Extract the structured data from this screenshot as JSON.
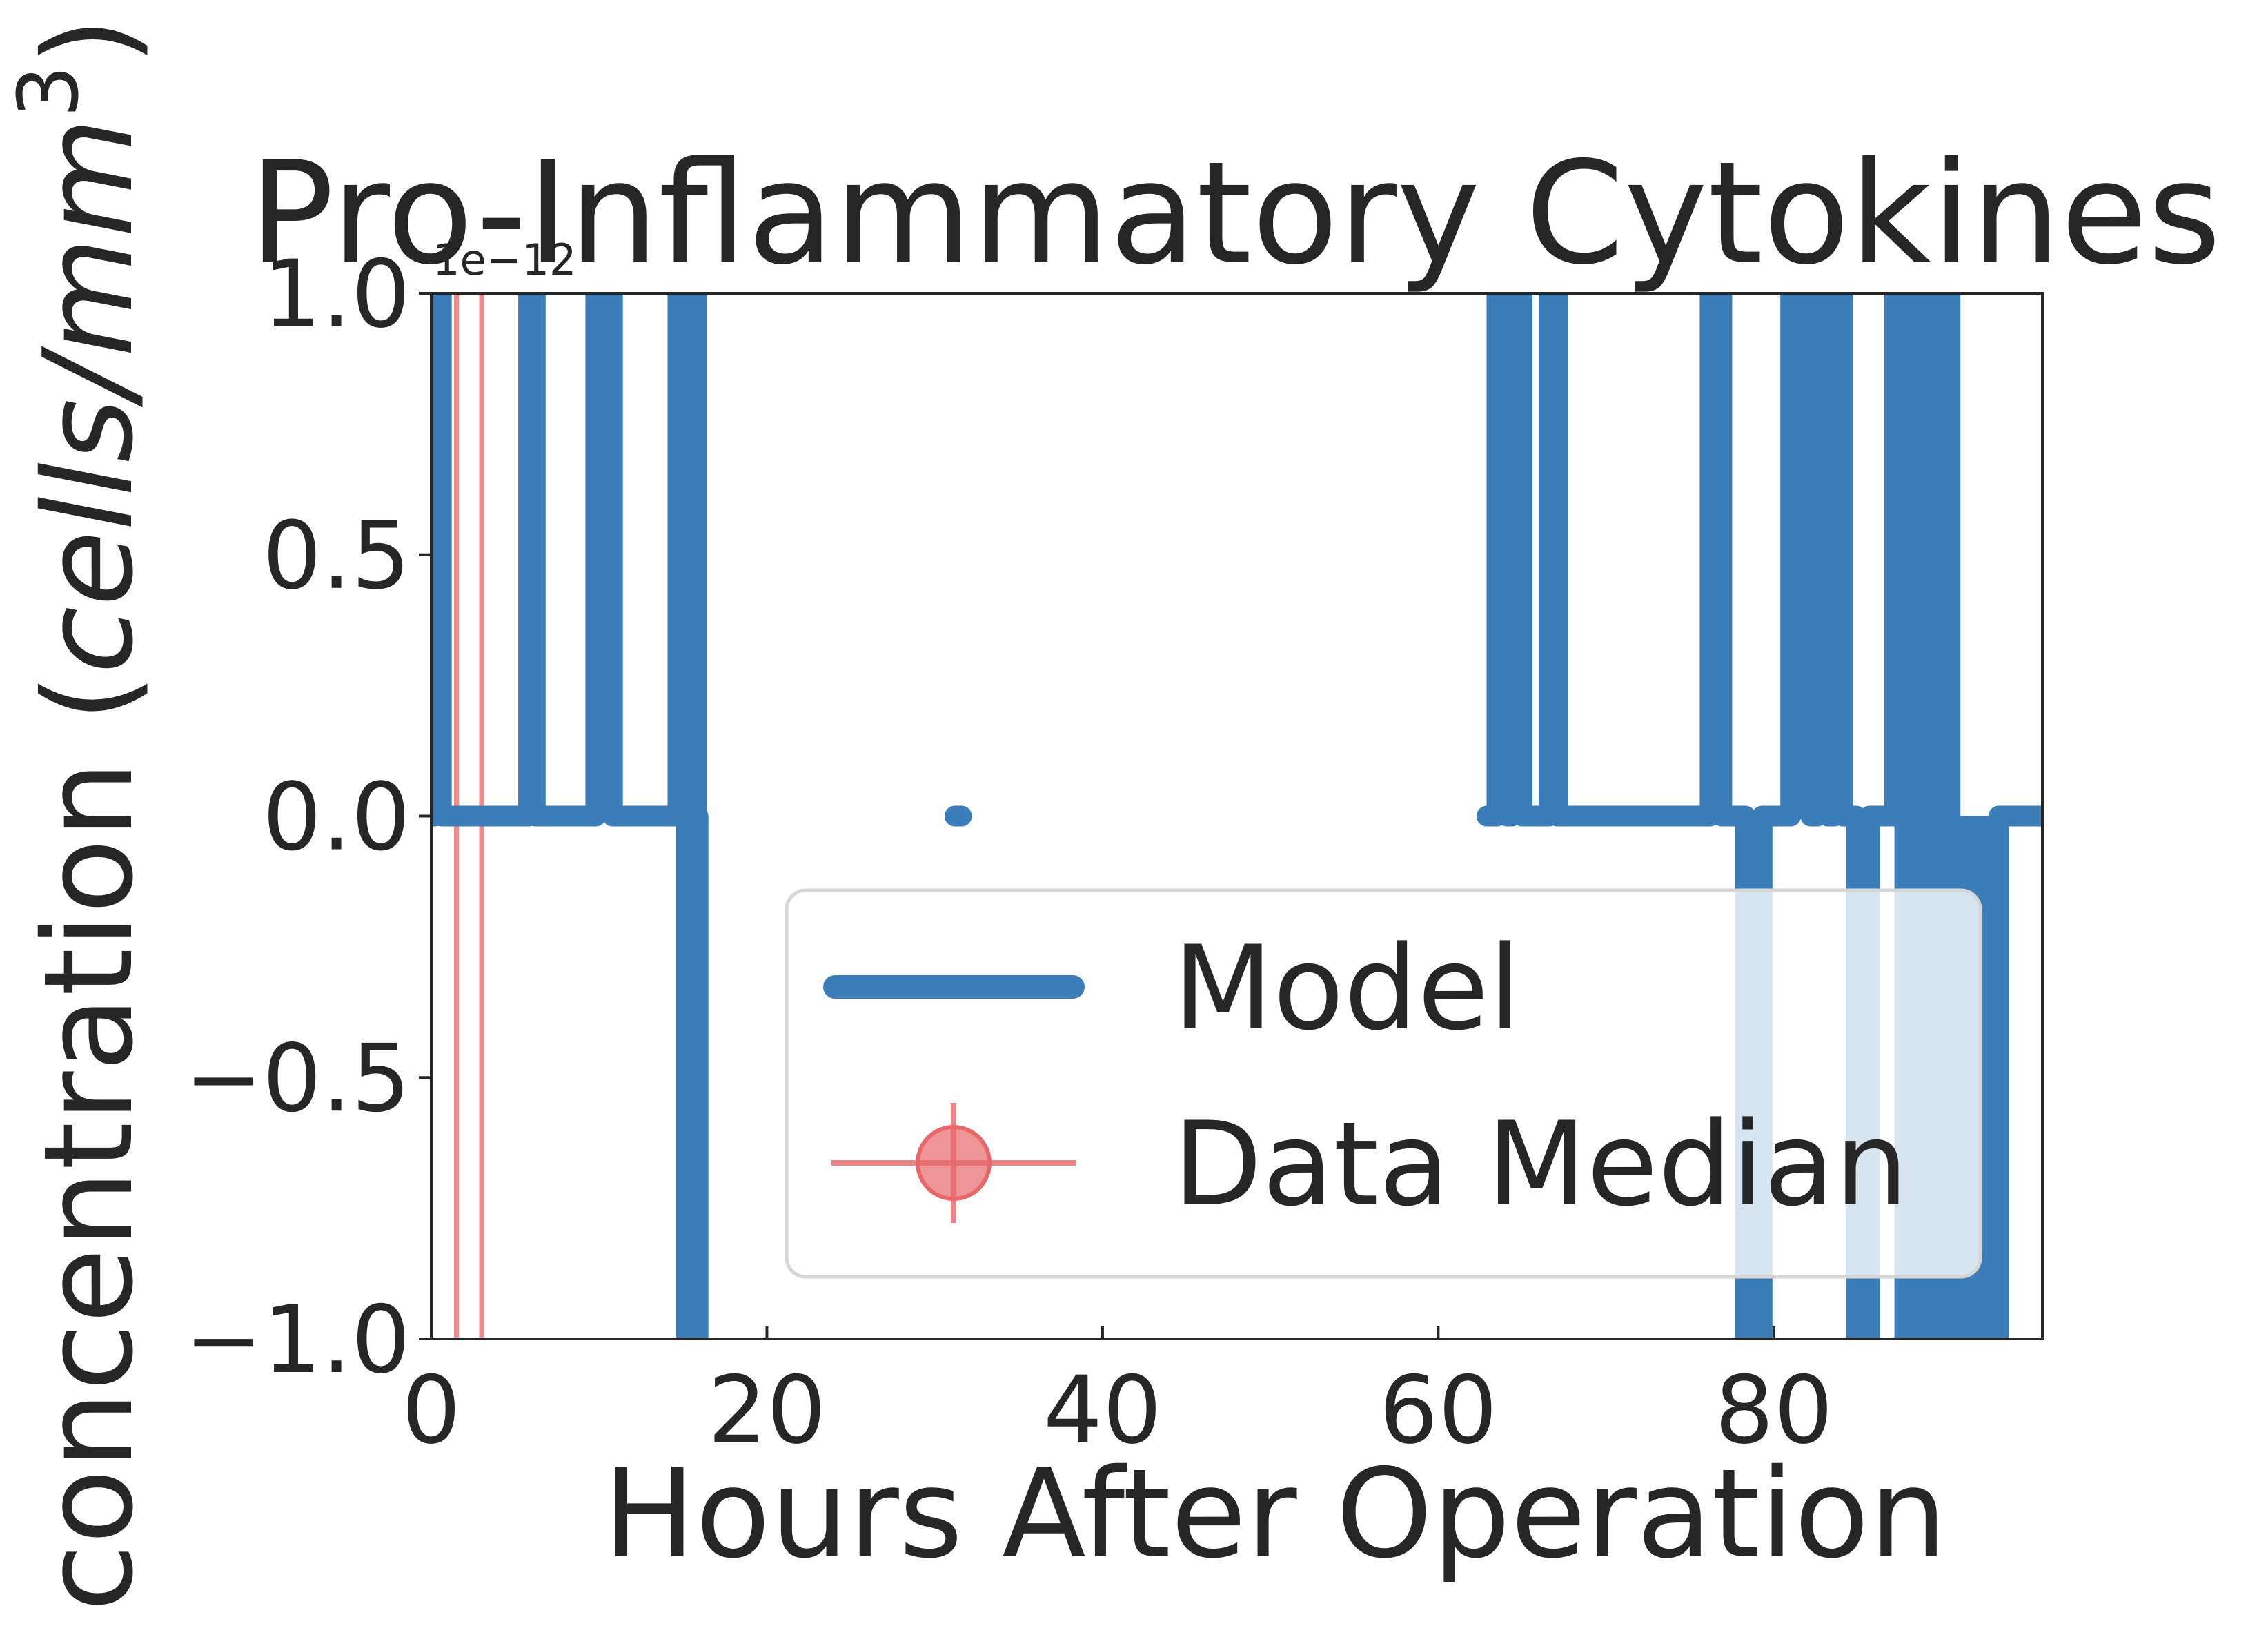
{
  "chart_data": {
    "type": "line",
    "title": "Pro-Inflammatory Cytokines",
    "xlabel": "Hours After Operation",
    "ylabel_text": "concentration (",
    "ylabel_unit": "cells/mm",
    "ylabel_exp": "3",
    "ylabel_close": ")",
    "offset_text": "1e−12",
    "xlim": [
      0,
      96
    ],
    "ylim": [
      -1.0,
      1.0
    ],
    "x_ticks": [
      0,
      20,
      40,
      60,
      80
    ],
    "x_tick_labels": [
      "0",
      "20",
      "40",
      "60",
      "80"
    ],
    "y_ticks": [
      -1.0,
      -0.5,
      0.0,
      0.5,
      1.0
    ],
    "y_tick_labels": [
      "−1.0",
      "−0.5",
      "0.0",
      "0.5",
      "1.0"
    ],
    "grid": false,
    "legend_position": "lower-right",
    "colors": {
      "model": "#3a7db8",
      "data": "#e8676b"
    },
    "series": [
      {
        "name": "Model",
        "kind": "line",
        "points": [
          [
            0,
            0
          ],
          [
            0.2,
            0
          ],
          [
            0.2,
            1.2
          ],
          [
            0.6,
            1.2
          ],
          [
            0.6,
            0
          ],
          [
            0.9,
            0
          ],
          [
            5.8,
            0
          ],
          [
            5.8,
            1.2
          ],
          [
            6.2,
            1.2
          ],
          [
            6.2,
            0
          ],
          [
            9.8,
            0
          ],
          [
            9.8,
            1.2
          ],
          [
            10.8,
            1.2
          ],
          [
            10.8,
            0
          ],
          [
            14.7,
            0
          ],
          [
            14.7,
            1.2
          ],
          [
            15.8,
            1.2
          ],
          [
            15.8,
            0
          ],
          [
            15.2,
            0
          ],
          [
            15.2,
            -1.2
          ],
          [
            15.9,
            -1.2
          ],
          [
            15.9,
            0
          ],
          null,
          [
            31.2,
            0
          ],
          [
            31.6,
            0
          ],
          null,
          [
            62.9,
            0
          ],
          [
            63.5,
            0
          ],
          [
            63.5,
            1.2
          ],
          [
            64.1,
            1.2
          ],
          [
            64.1,
            0
          ],
          [
            64.4,
            0
          ],
          [
            64.4,
            1.2
          ],
          [
            65.0,
            1.2
          ],
          [
            65.0,
            0
          ],
          [
            66.6,
            0
          ],
          [
            66.6,
            1.2
          ],
          [
            67.1,
            1.2
          ],
          [
            67.1,
            0
          ],
          [
            76.2,
            0
          ],
          [
            76.2,
            1.2
          ],
          [
            76.9,
            1.2
          ],
          [
            76.9,
            0
          ],
          [
            78.3,
            0
          ],
          [
            78.3,
            -1.2
          ],
          [
            79.3,
            -1.2
          ],
          [
            79.3,
            0
          ],
          [
            81.0,
            0
          ],
          [
            81.0,
            1.2
          ],
          [
            82.2,
            1.2
          ],
          [
            82.2,
            0
          ],
          [
            82.6,
            0
          ],
          [
            82.6,
            1.2
          ],
          [
            83.2,
            1.2
          ],
          [
            83.2,
            0
          ],
          [
            83.6,
            0
          ],
          [
            83.6,
            1.2
          ],
          [
            84.1,
            1.2
          ],
          [
            84.1,
            0
          ],
          [
            84.9,
            0
          ],
          [
            84.9,
            -1.2
          ],
          [
            85.7,
            -1.2
          ],
          [
            85.7,
            0
          ],
          [
            87.2,
            0
          ],
          [
            87.2,
            1.2
          ],
          [
            88.1,
            1.2
          ],
          [
            88.1,
            0
          ],
          [
            88.6,
            0
          ],
          [
            88.6,
            1.2
          ],
          [
            89.5,
            1.2
          ],
          [
            89.5,
            0
          ],
          [
            89.9,
            0
          ],
          [
            89.9,
            1.2
          ],
          [
            90.5,
            1.2
          ],
          [
            90.5,
            0
          ],
          [
            87.8,
            0
          ],
          [
            87.8,
            -1.2
          ],
          [
            93.4,
            -1.2
          ],
          [
            93.4,
            0
          ],
          [
            96,
            0
          ]
        ],
        "fill_blocks": [
          [
            81.2,
            84.0,
            0,
            1.0
          ],
          [
            87.4,
            90.4,
            0,
            1.0
          ],
          [
            87.9,
            93.3,
            -1.0,
            0
          ]
        ]
      },
      {
        "name": "Data Median",
        "kind": "errorbar",
        "x": [
          1.5,
          3.0
        ],
        "y": [
          null,
          null
        ],
        "note_lines": "vertical error bars spanning beyond axis range"
      }
    ]
  }
}
